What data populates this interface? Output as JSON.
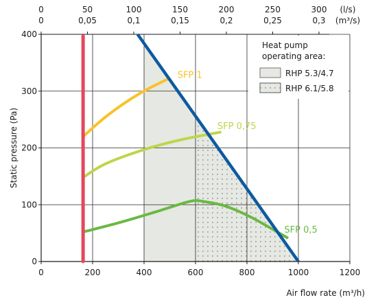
{
  "chart_data": {
    "type": "line",
    "ylabel": "Static pressure (Pa)",
    "xlabel": "Air flow rate (m³/h)",
    "xlim": [
      0,
      1200
    ],
    "ylim": [
      0,
      400
    ],
    "x_ticks": [
      0,
      200,
      400,
      600,
      800,
      1000,
      1200
    ],
    "y_ticks": [
      0,
      100,
      200,
      300,
      400
    ],
    "grid": true,
    "top_axis": {
      "ls_ticks": [
        "0",
        "50",
        "100",
        "150",
        "200",
        "250",
        "300"
      ],
      "m3s_ticks": [
        "0",
        "0,05",
        "0,1",
        "0,15",
        "0,2",
        "0,25",
        "0,3"
      ],
      "ls_unit": "(l/s)",
      "m3s_unit": "(m³/s)"
    },
    "legend": {
      "title_line1": "Heat pump",
      "title_line2": "operating area:",
      "entries": [
        {
          "label": "RHP 5.3/4.7",
          "fill": "#e6e8e3"
        },
        {
          "label": "RHP 6.1/5.8",
          "fill": "#e6e8e3",
          "dotted": true
        }
      ]
    },
    "series": [
      {
        "name": "SFP 1",
        "color": "#f8c32a",
        "x": [
          163,
          260,
          380,
          500
        ],
        "y": [
          220,
          258,
          295,
          323
        ]
      },
      {
        "name": "SFP 0,75",
        "color": "#bcd64a",
        "x": [
          163,
          250,
          400,
          550,
          700
        ],
        "y": [
          148,
          172,
          197,
          215,
          228
        ]
      },
      {
        "name": "SFP 0,5",
        "color": "#6ab844",
        "x": [
          163,
          300,
          450,
          580,
          640,
          720,
          820,
          960
        ],
        "y": [
          52,
          68,
          88,
          106,
          105,
          97,
          77,
          41
        ]
      },
      {
        "name": "",
        "color": "#e5485b",
        "x": [
          163,
          163
        ],
        "y": [
          0,
          397
        ]
      },
      {
        "name": "",
        "color": "#0d5aa0",
        "x": [
          375,
          1000
        ],
        "y": [
          400,
          0
        ]
      }
    ],
    "labels": [
      {
        "text": "SFP 1",
        "x": 530,
        "y": 323,
        "color": "#f8c32a"
      },
      {
        "text": "SFP 0,75",
        "x": 685,
        "y": 233,
        "color": "#bcd64a"
      },
      {
        "text": "SFP 0,5",
        "x": 945,
        "y": 51,
        "color": "#6ab844"
      }
    ],
    "areas": [
      {
        "label": "RHP 5.3/4.7",
        "x_min": 400,
        "x_max": 1000
      },
      {
        "label": "RHP 6.1/5.8",
        "x_min": 600,
        "x_max": 1000
      }
    ]
  }
}
